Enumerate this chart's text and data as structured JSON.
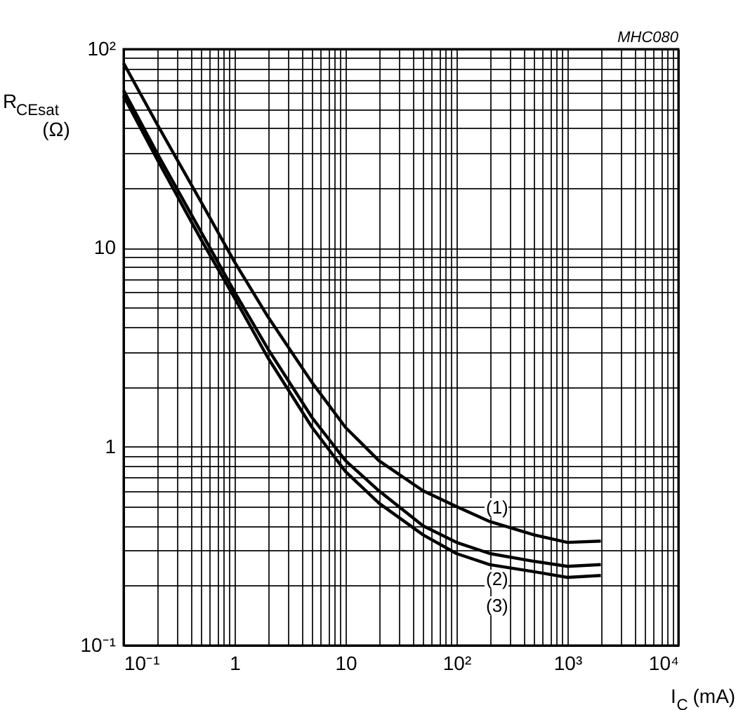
{
  "chart_data": {
    "type": "line",
    "xlabel": "I$_{C}$ (mA)",
    "ylabel": "R$_{CEsat}$ (Ω)",
    "log": "xy",
    "grid": true,
    "legend": false,
    "marker": "none",
    "line_style": "solid",
    "xlim": [
      0.1,
      10000
    ],
    "ylim": [
      0.1,
      100
    ],
    "xticks": [
      {
        "value": 0.1,
        "label": "10⁻¹"
      },
      {
        "value": 0.2,
        "label": null
      },
      {
        "value": 0.3,
        "label": null
      },
      {
        "value": 0.4,
        "label": null
      },
      {
        "value": 0.5,
        "label": null
      },
      {
        "value": 0.6,
        "label": null
      },
      {
        "value": 0.7,
        "label": null
      },
      {
        "value": 0.8,
        "label": null
      },
      {
        "value": 0.9,
        "label": null
      },
      1,
      {
        "value": 2,
        "label": null
      },
      {
        "value": 3,
        "label": null
      },
      {
        "value": 4,
        "label": null
      },
      {
        "value": 5,
        "label": null
      },
      {
        "value": 6,
        "label": null
      },
      {
        "value": 7,
        "label": null
      },
      {
        "value": 8,
        "label": null
      },
      {
        "value": 9,
        "label": null
      },
      10,
      {
        "value": 20,
        "label": null
      },
      {
        "value": 30,
        "label": null
      },
      {
        "value": 40,
        "label": null
      },
      {
        "value": 50,
        "label": null
      },
      {
        "value": 60,
        "label": null
      },
      {
        "value": 70,
        "label": null
      },
      {
        "value": 80,
        "label": null
      },
      {
        "value": 90,
        "label": null
      },
      {
        "value": 100,
        "label": "10²"
      },
      {
        "value": 200,
        "label": null
      },
      {
        "value": 300,
        "label": null
      },
      {
        "value": 400,
        "label": null
      },
      {
        "value": 500,
        "label": null
      },
      {
        "value": 600,
        "label": null
      },
      {
        "value": 700,
        "label": null
      },
      {
        "value": 800,
        "label": null
      },
      {
        "value": 900,
        "label": null
      },
      {
        "value": 1000,
        "label": "10³"
      },
      {
        "value": 2000,
        "label": null
      },
      {
        "value": 3000,
        "label": null
      },
      {
        "value": 4000,
        "label": null
      },
      {
        "value": 5000,
        "label": null
      },
      {
        "value": 6000,
        "label": null
      },
      {
        "value": 7000,
        "label": null
      },
      {
        "value": 8000,
        "label": null
      },
      {
        "value": 9000,
        "label": null
      },
      {
        "value": 10000,
        "label": "10⁴"
      }
    ],
    "yticks": [
      {
        "value": 0.1,
        "label": "10⁻¹"
      },
      {
        "value": 0.2,
        "label": null
      },
      {
        "value": 0.3,
        "label": null
      },
      {
        "value": 0.4,
        "label": null
      },
      {
        "value": 0.5,
        "label": null
      },
      {
        "value": 0.6,
        "label": null
      },
      {
        "value": 0.7,
        "label": null
      },
      {
        "value": 0.8,
        "label": null
      },
      {
        "value": 0.9,
        "label": null
      },
      1,
      {
        "value": 2,
        "label": null
      },
      {
        "value": 3,
        "label": null
      },
      {
        "value": 4,
        "label": null
      },
      {
        "value": 5,
        "label": null
      },
      {
        "value": 6,
        "label": null
      },
      {
        "value": 7,
        "label": null
      },
      {
        "value": 8,
        "label": null
      },
      {
        "value": 9,
        "label": null
      },
      10,
      {
        "value": 20,
        "label": null
      },
      {
        "value": 30,
        "label": null
      },
      {
        "value": 40,
        "label": null
      },
      {
        "value": 50,
        "label": null
      },
      {
        "value": 60,
        "label": null
      },
      {
        "value": 70,
        "label": null
      },
      {
        "value": 80,
        "label": null
      },
      {
        "value": 90,
        "label": null
      },
      {
        "value": 100,
        "label": "10²"
      }
    ],
    "x": [
      0.1,
      0.2,
      0.5,
      1,
      2,
      5,
      10,
      20,
      50,
      100,
      200,
      500,
      1000,
      2000
    ],
    "series": [
      {
        "color": "#000000",
        "values": [
          85,
          42,
          17,
          8.5,
          4.5,
          2.1,
          1.25,
          0.85,
          0.6,
          0.5,
          0.42,
          0.36,
          0.33,
          0.335
        ]
      },
      {
        "color": "#000000",
        "values": [
          62,
          30,
          12,
          6,
          3.1,
          1.4,
          0.85,
          0.6,
          0.4,
          0.33,
          0.29,
          0.265,
          0.25,
          0.255
        ]
      },
      {
        "color": "#000000",
        "values": [
          58,
          28,
          11,
          5.6,
          2.8,
          1.25,
          0.75,
          0.52,
          0.36,
          0.29,
          0.255,
          0.235,
          0.22,
          0.225
        ]
      }
    ],
    "annotations": [
      "(1)",
      "(2)",
      "(3)",
      "MHC080"
    ]
  }
}
